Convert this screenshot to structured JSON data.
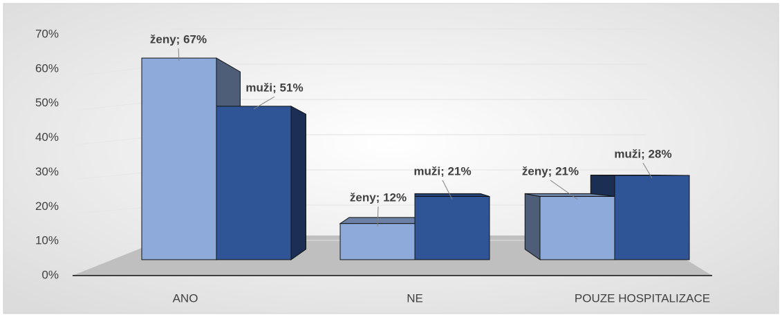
{
  "chart_data": {
    "type": "bar3d",
    "categories": [
      "ANO",
      "NE",
      "POUZE HOSPITALIZACE"
    ],
    "series": [
      {
        "name": "ženy",
        "color": "#8eaadb",
        "values": [
          67,
          12,
          21
        ],
        "value_labels": [
          "ženy; 67%",
          "ženy; 12%",
          "ženy; 21%"
        ]
      },
      {
        "name": "muži",
        "color": "#2f5597",
        "values": [
          51,
          21,
          28
        ],
        "value_labels": [
          "muži; 51%",
          "muži; 21%",
          "muži; 28%"
        ]
      }
    ],
    "ylim": [
      0,
      70
    ],
    "yticks": [
      {
        "value": 0,
        "label": "0%"
      },
      {
        "value": 10,
        "label": "10%"
      },
      {
        "value": 20,
        "label": "20%"
      },
      {
        "value": 30,
        "label": "30%"
      },
      {
        "value": 40,
        "label": "40%"
      },
      {
        "value": 50,
        "label": "50%"
      },
      {
        "value": 60,
        "label": "60%"
      },
      {
        "value": 70,
        "label": "70%"
      }
    ],
    "grid": true
  }
}
